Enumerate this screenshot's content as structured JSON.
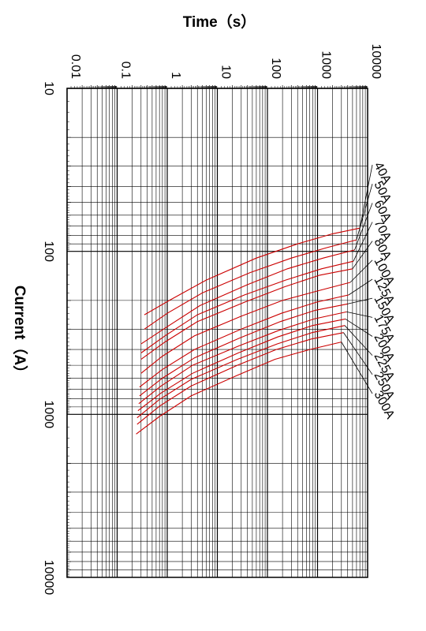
{
  "chart_data": {
    "type": "line",
    "xlabel": "Current（A）",
    "ylabel": "Time（s）",
    "x_scale": "log",
    "y_scale": "log",
    "xlim": [
      10,
      10000
    ],
    "ylim": [
      0.01,
      10000
    ],
    "x_ticks": [
      "10",
      "100",
      "1000",
      "10000"
    ],
    "y_ticks": [
      "0.01",
      "0.1",
      "1",
      "10",
      "100",
      "1000",
      "10000"
    ],
    "grid": true,
    "curve_color": "#cc0000",
    "series": [
      {
        "name": "40A",
        "x": [
          72,
          78,
          90,
          110,
          150,
          200,
          245
        ],
        "y": [
          7000,
          2000,
          400,
          60,
          6,
          1.1,
          0.35
        ]
      },
      {
        "name": "50A",
        "x": [
          85,
          95,
          110,
          135,
          180,
          240,
          300
        ],
        "y": [
          6000,
          1500,
          300,
          45,
          5,
          1,
          0.35
        ]
      },
      {
        "name": "60A",
        "x": [
          98,
          110,
          128,
          160,
          215,
          290,
          370
        ],
        "y": [
          5500,
          1300,
          250,
          40,
          4.5,
          1,
          0.3
        ]
      },
      {
        "name": "70A",
        "x": [
          115,
          128,
          150,
          185,
          245,
          330,
          420
        ],
        "y": [
          5200,
          1200,
          230,
          35,
          4,
          0.9,
          0.3
        ]
      },
      {
        "name": "80A",
        "x": [
          128,
          140,
          165,
          205,
          270,
          360,
          460
        ],
        "y": [
          5000,
          1100,
          220,
          35,
          4,
          0.9,
          0.3
        ]
      },
      {
        "name": "100A",
        "x": [
          155,
          175,
          200,
          250,
          330,
          440,
          560
        ],
        "y": [
          4500,
          1000,
          200,
          30,
          3.5,
          0.8,
          0.3
        ]
      },
      {
        "name": "125A",
        "x": [
          185,
          205,
          240,
          300,
          400,
          530,
          680
        ],
        "y": [
          4200,
          950,
          190,
          30,
          3.5,
          0.8,
          0.28
        ]
      },
      {
        "name": "150A",
        "x": [
          210,
          230,
          270,
          340,
          450,
          600,
          770
        ],
        "y": [
          4000,
          900,
          180,
          28,
          3.5,
          0.8,
          0.28
        ]
      },
      {
        "name": "175A",
        "x": [
          235,
          260,
          305,
          380,
          500,
          670,
          860
        ],
        "y": [
          3800,
          850,
          170,
          27,
          3.2,
          0.75,
          0.27
        ]
      },
      {
        "name": "200A",
        "x": [
          260,
          285,
          335,
          420,
          560,
          740,
          950
        ],
        "y": [
          3600,
          800,
          160,
          26,
          3.2,
          0.75,
          0.26
        ]
      },
      {
        "name": "225A",
        "x": [
          285,
          315,
          370,
          460,
          610,
          810,
          1050
        ],
        "y": [
          3500,
          780,
          155,
          25,
          3,
          0.7,
          0.25
        ]
      },
      {
        "name": "250A",
        "x": [
          315,
          345,
          400,
          500,
          670,
          890,
          1150
        ],
        "y": [
          3300,
          750,
          150,
          25,
          3,
          0.7,
          0.25
        ]
      },
      {
        "name": "300A",
        "x": [
          360,
          400,
          460,
          580,
          770,
          1030,
          1320
        ],
        "y": [
          3000,
          700,
          140,
          24,
          3,
          0.7,
          0.24
        ]
      }
    ]
  }
}
